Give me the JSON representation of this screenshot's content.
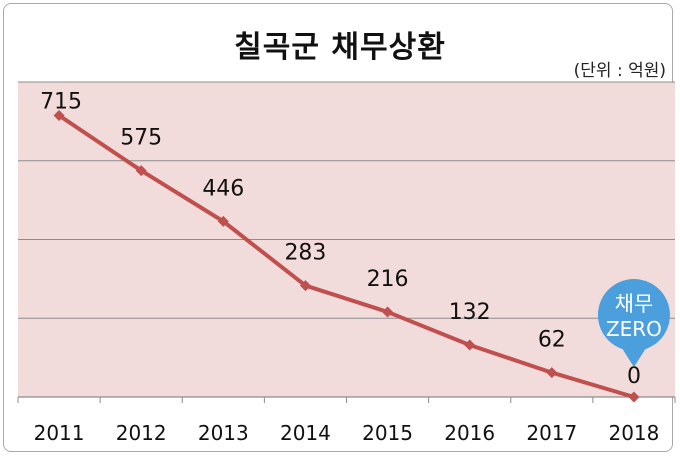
{
  "chart_data": {
    "type": "line",
    "title": "칠곡군 채무상환",
    "unit": "(단위 : 억원)",
    "categories": [
      "2011",
      "2012",
      "2013",
      "2014",
      "2015",
      "2016",
      "2017",
      "2018"
    ],
    "series": [
      {
        "values": [
          715,
          575,
          446,
          283,
          216,
          132,
          62,
          0
        ]
      }
    ],
    "data_labels": [
      "715",
      "575",
      "446",
      "283",
      "216",
      "132",
      "62",
      "0"
    ],
    "ylim": [
      0,
      800
    ],
    "grid": true,
    "line_color": "#c0504d",
    "plot_bg": "#f2dcdb",
    "callout": {
      "line1": "채무",
      "line2": "ZERO",
      "color": "#4a9fdc"
    }
  }
}
